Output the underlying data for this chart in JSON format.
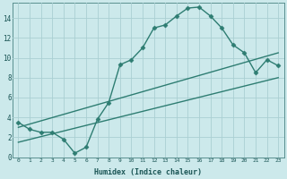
{
  "xlabel": "Humidex (Indice chaleur)",
  "bg_color": "#cce9eb",
  "grid_color": "#aacfd2",
  "line_color": "#2e7d72",
  "xlim": [
    -0.5,
    23.5
  ],
  "ylim": [
    0,
    15.5
  ],
  "xticks": [
    0,
    1,
    2,
    3,
    4,
    5,
    6,
    7,
    8,
    9,
    10,
    11,
    12,
    13,
    14,
    15,
    16,
    17,
    18,
    19,
    20,
    21,
    22,
    23
  ],
  "yticks": [
    0,
    2,
    4,
    6,
    8,
    10,
    12,
    14
  ],
  "line1_x": [
    0,
    1,
    2,
    3,
    4,
    5,
    6,
    7,
    8,
    9,
    10,
    11,
    12,
    13,
    14,
    15,
    16,
    17,
    18,
    19,
    20,
    21,
    22,
    23
  ],
  "line1_y": [
    3.5,
    2.8,
    2.5,
    2.5,
    1.8,
    0.4,
    1.0,
    3.8,
    5.5,
    9.3,
    9.8,
    11.0,
    13.0,
    13.3,
    14.2,
    15.0,
    15.1,
    14.2,
    13.0,
    11.3,
    10.5,
    8.5,
    9.8,
    9.2
  ],
  "line2_x": [
    0,
    23
  ],
  "line2_y": [
    3.0,
    10.5
  ],
  "line3_x": [
    0,
    23
  ],
  "line3_y": [
    1.5,
    8.0
  ],
  "marker": "D",
  "markersize": 2.5,
  "linewidth": 1.0
}
